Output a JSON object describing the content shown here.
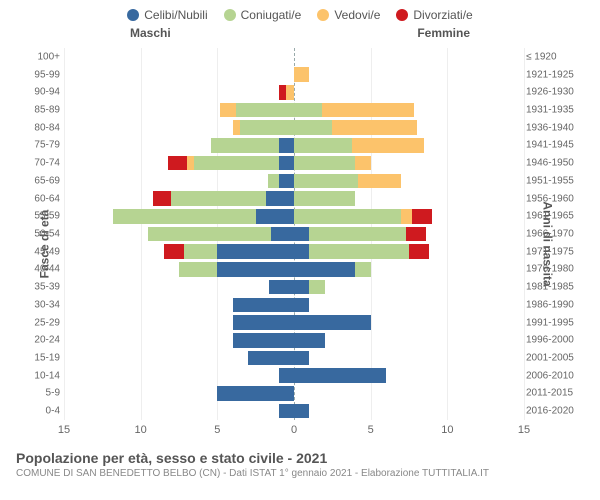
{
  "legend": [
    {
      "label": "Celibi/Nubili",
      "color": "#38699f"
    },
    {
      "label": "Coniugati/e",
      "color": "#b6d492"
    },
    {
      "label": "Vedovi/e",
      "color": "#fcc36b"
    },
    {
      "label": "Divorziati/e",
      "color": "#cf1a1f"
    }
  ],
  "gender": {
    "left": "Maschi",
    "right": "Femmine"
  },
  "axis": {
    "ylabel_left": "Fasce di età",
    "ylabel_right": "Anni di nascita",
    "xmax": 15,
    "xticks": [
      15,
      10,
      5,
      0,
      5,
      10,
      15
    ]
  },
  "chart": {
    "categories_left": [
      "100+",
      "95-99",
      "90-94",
      "85-89",
      "80-84",
      "75-79",
      "70-74",
      "65-69",
      "60-64",
      "55-59",
      "50-54",
      "45-49",
      "40-44",
      "35-39",
      "30-34",
      "25-29",
      "20-24",
      "15-19",
      "10-14",
      "5-9",
      "0-4"
    ],
    "categories_right": [
      "≤ 1920",
      "1921-1925",
      "1926-1930",
      "1931-1935",
      "1936-1940",
      "1941-1945",
      "1946-1950",
      "1951-1955",
      "1956-1960",
      "1961-1965",
      "1966-1970",
      "1971-1975",
      "1976-1980",
      "1981-1985",
      "1986-1990",
      "1991-1995",
      "1996-2000",
      "2001-2005",
      "2006-2010",
      "2011-2015",
      "2016-2020"
    ],
    "rows": [
      {
        "m": {
          "celibi": 0,
          "coniugati": 0,
          "vedovi": 0,
          "divorziati": 0
        },
        "f": {
          "celibi": 0,
          "coniugati": 0,
          "vedovi": 0,
          "divorziati": 0
        }
      },
      {
        "m": {
          "celibi": 0,
          "coniugati": 0,
          "vedovi": 0,
          "divorziati": 0
        },
        "f": {
          "celibi": 0,
          "coniugati": 0,
          "vedovi": 1,
          "divorziati": 0
        }
      },
      {
        "m": {
          "celibi": 0,
          "coniugati": 0,
          "vedovi": 0.5,
          "divorziati": 0.5
        },
        "f": {
          "celibi": 0,
          "coniugati": 0,
          "vedovi": 0,
          "divorziati": 0
        }
      },
      {
        "m": {
          "celibi": 0,
          "coniugati": 3.8,
          "vedovi": 1,
          "divorziati": 0
        },
        "f": {
          "celibi": 0,
          "coniugati": 1.8,
          "vedovi": 6,
          "divorziati": 0
        }
      },
      {
        "m": {
          "celibi": 0,
          "coniugati": 3.5,
          "vedovi": 0.5,
          "divorziati": 0
        },
        "f": {
          "celibi": 0,
          "coniugati": 2.5,
          "vedovi": 5.5,
          "divorziati": 0
        }
      },
      {
        "m": {
          "celibi": 1,
          "coniugati": 4.4,
          "vedovi": 0,
          "divorziati": 0
        },
        "f": {
          "celibi": 0,
          "coniugati": 3.8,
          "vedovi": 4.7,
          "divorziati": 0
        }
      },
      {
        "m": {
          "celibi": 1,
          "coniugati": 5.5,
          "vedovi": 0.5,
          "divorziati": 1.2
        },
        "f": {
          "celibi": 0,
          "coniugati": 4,
          "vedovi": 1,
          "divorziati": 0
        }
      },
      {
        "m": {
          "celibi": 1,
          "coniugati": 0.7,
          "vedovi": 0,
          "divorziati": 0
        },
        "f": {
          "celibi": 0,
          "coniugati": 4.2,
          "vedovi": 2.8,
          "divorziati": 0
        }
      },
      {
        "m": {
          "celibi": 1.8,
          "coniugati": 6.2,
          "vedovi": 0,
          "divorziati": 1.2
        },
        "f": {
          "celibi": 0,
          "coniugati": 4,
          "vedovi": 0,
          "divorziati": 0
        }
      },
      {
        "m": {
          "celibi": 2.5,
          "coniugati": 9.3,
          "vedovi": 0,
          "divorziati": 0
        },
        "f": {
          "celibi": 0,
          "coniugati": 7.0,
          "vedovi": 0.7,
          "divorziati": 1.3
        }
      },
      {
        "m": {
          "celibi": 1.5,
          "coniugati": 8.0,
          "vedovi": 0,
          "divorziati": 0
        },
        "f": {
          "celibi": 1,
          "coniugati": 6.3,
          "vedovi": 0,
          "divorziati": 1.3
        }
      },
      {
        "m": {
          "celibi": 5,
          "coniugati": 2.2,
          "vedovi": 0,
          "divorziati": 1.3
        },
        "f": {
          "celibi": 1,
          "coniugati": 6.5,
          "vedovi": 0,
          "divorziati": 1.3
        }
      },
      {
        "m": {
          "celibi": 5,
          "coniugati": 2.5,
          "vedovi": 0,
          "divorziati": 0
        },
        "f": {
          "celibi": 4,
          "coniugati": 1,
          "vedovi": 0,
          "divorziati": 0
        }
      },
      {
        "m": {
          "celibi": 1.6,
          "coniugati": 0,
          "vedovi": 0,
          "divorziati": 0
        },
        "f": {
          "celibi": 1,
          "coniugati": 1,
          "vedovi": 0,
          "divorziati": 0
        }
      },
      {
        "m": {
          "celibi": 4,
          "coniugati": 0,
          "vedovi": 0,
          "divorziati": 0
        },
        "f": {
          "celibi": 1,
          "coniugati": 0,
          "vedovi": 0,
          "divorziati": 0
        }
      },
      {
        "m": {
          "celibi": 4,
          "coniugati": 0,
          "vedovi": 0,
          "divorziati": 0
        },
        "f": {
          "celibi": 5,
          "coniugati": 0,
          "vedovi": 0,
          "divorziati": 0
        }
      },
      {
        "m": {
          "celibi": 4,
          "coniugati": 0,
          "vedovi": 0,
          "divorziati": 0
        },
        "f": {
          "celibi": 2,
          "coniugati": 0,
          "vedovi": 0,
          "divorziati": 0
        }
      },
      {
        "m": {
          "celibi": 3,
          "coniugati": 0,
          "vedovi": 0,
          "divorziati": 0
        },
        "f": {
          "celibi": 1,
          "coniugati": 0,
          "vedovi": 0,
          "divorziati": 0
        }
      },
      {
        "m": {
          "celibi": 1,
          "coniugati": 0,
          "vedovi": 0,
          "divorziati": 0
        },
        "f": {
          "celibi": 6,
          "coniugati": 0,
          "vedovi": 0,
          "divorziati": 0
        }
      },
      {
        "m": {
          "celibi": 5,
          "coniugati": 0,
          "vedovi": 0,
          "divorziati": 0
        },
        "f": {
          "celibi": 0,
          "coniugati": 0,
          "vedovi": 0,
          "divorziati": 0
        }
      },
      {
        "m": {
          "celibi": 1,
          "coniugati": 0,
          "vedovi": 0,
          "divorziati": 0
        },
        "f": {
          "celibi": 1,
          "coniugati": 0,
          "vedovi": 0,
          "divorziati": 0
        }
      }
    ],
    "row_gap_ratio": 0.18
  },
  "footer": {
    "title": "Popolazione per età, sesso e stato civile - 2021",
    "subtitle": "COMUNE DI SAN BENEDETTO BELBO (CN) - Dati ISTAT 1° gennaio 2021 - Elaborazione TUTTITALIA.IT"
  }
}
